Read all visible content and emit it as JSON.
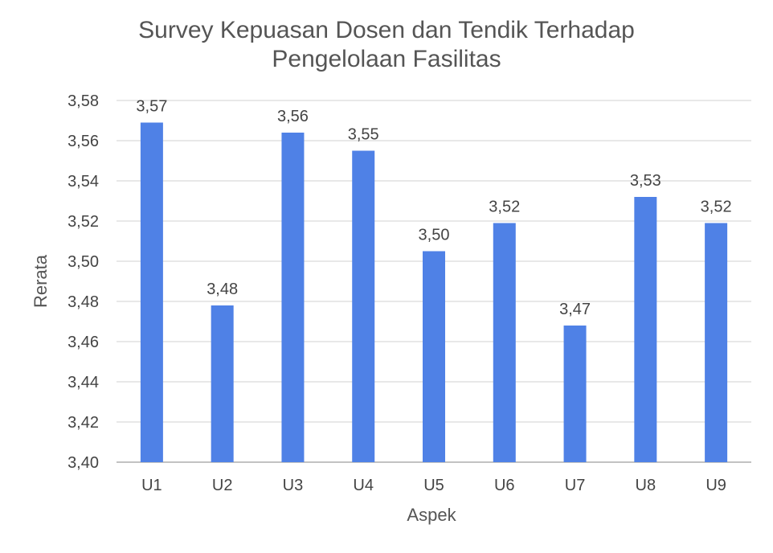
{
  "chart_data": {
    "type": "bar",
    "title_line1": "Survey Kepuasan Dosen dan Tendik Terhadap",
    "title_line2": "Pengelolaan Fasilitas",
    "xlabel": "Aspek",
    "ylabel": "Rerata",
    "categories": [
      "U1",
      "U2",
      "U3",
      "U4",
      "U5",
      "U6",
      "U7",
      "U8",
      "U9"
    ],
    "values": [
      3.569,
      3.478,
      3.564,
      3.555,
      3.505,
      3.519,
      3.468,
      3.532,
      3.519
    ],
    "data_labels": [
      "3,57",
      "3,48",
      "3,56",
      "3,55",
      "3,50",
      "3,52",
      "3,47",
      "3,53",
      "3,52"
    ],
    "ylim": [
      3.4,
      3.58
    ],
    "yticks": [
      3.4,
      3.42,
      3.44,
      3.46,
      3.48,
      3.5,
      3.52,
      3.54,
      3.56,
      3.58
    ],
    "ytick_labels": [
      "3,40",
      "3,42",
      "3,44",
      "3,46",
      "3,48",
      "3,50",
      "3,52",
      "3,54",
      "3,56",
      "3,58"
    ],
    "grid": true,
    "legend": "none",
    "bar_color": "#4f81e6"
  }
}
